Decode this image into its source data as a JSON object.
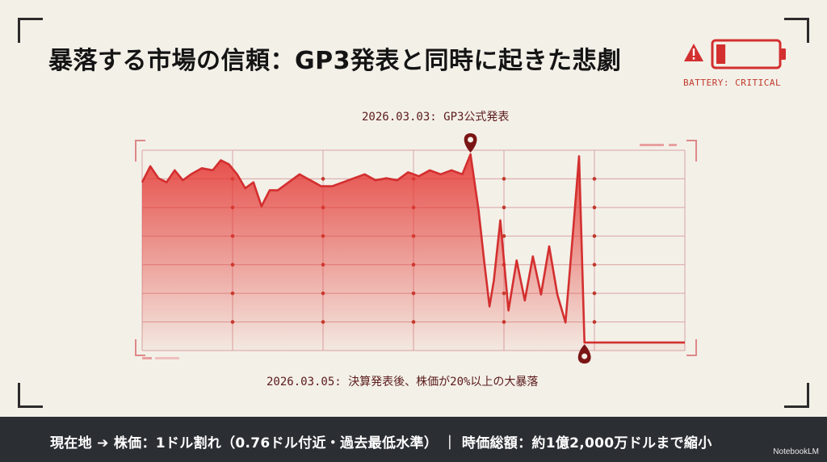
{
  "title": "暴落する市場の信頼：GP3発表と同時に起きた悲劇",
  "battery": {
    "label": "BATTERY: CRITICAL",
    "level": 0.15,
    "color": "#d32f2f"
  },
  "annotations": {
    "top": "2026.03.03: GP3公式発表",
    "bottom": "2026.03.05: 決算発表後、株価が20%以上の大暴落"
  },
  "footer": {
    "text": "現在地 ➔ 株価：1ドル割れ（0.76ドル付近・過去最低水準） ｜ 時価総額：約1億2,000万ドルまで縮小"
  },
  "brand": "NotebookLM",
  "colors": {
    "accent": "#d32f2f",
    "grid": "#d9a3a3",
    "background": "#f3f0e8",
    "footer": "#2b2e33"
  },
  "icons": [
    "warning-icon",
    "battery-icon",
    "map-pin-icon"
  ],
  "chart_data": {
    "type": "area",
    "title": "",
    "xlabel": "",
    "ylabel": "",
    "grid": true,
    "ylim": [
      0,
      100
    ],
    "xlim": [
      0,
      100
    ],
    "series": [
      {
        "x": [
          0,
          1.5,
          3,
          4.5,
          6,
          7.5,
          9,
          11,
          13,
          14.5,
          16,
          17.5,
          19,
          20.5,
          22,
          23.5,
          25,
          27,
          29,
          31,
          33,
          35,
          37,
          39,
          41,
          43,
          45,
          47,
          49,
          51,
          53,
          55,
          57,
          59,
          60.5,
          62,
          63,
          64,
          64.8,
          66,
          67.5,
          69,
          70.5,
          72,
          73.5,
          75,
          76.5,
          78,
          79.3,
          80.5,
          81.5,
          100
        ],
        "y": [
          84,
          92,
          86,
          84,
          90,
          85,
          88,
          91,
          90,
          95,
          93,
          88,
          81,
          84,
          72,
          80,
          80,
          84,
          88,
          85,
          82,
          82,
          84,
          86,
          88,
          85,
          86,
          85,
          89,
          87,
          90,
          88,
          90,
          88,
          98,
          70,
          45,
          22,
          35,
          65,
          20,
          45,
          25,
          47,
          28,
          52,
          28,
          14,
          56,
          97,
          4,
          4
        ]
      }
    ]
  }
}
